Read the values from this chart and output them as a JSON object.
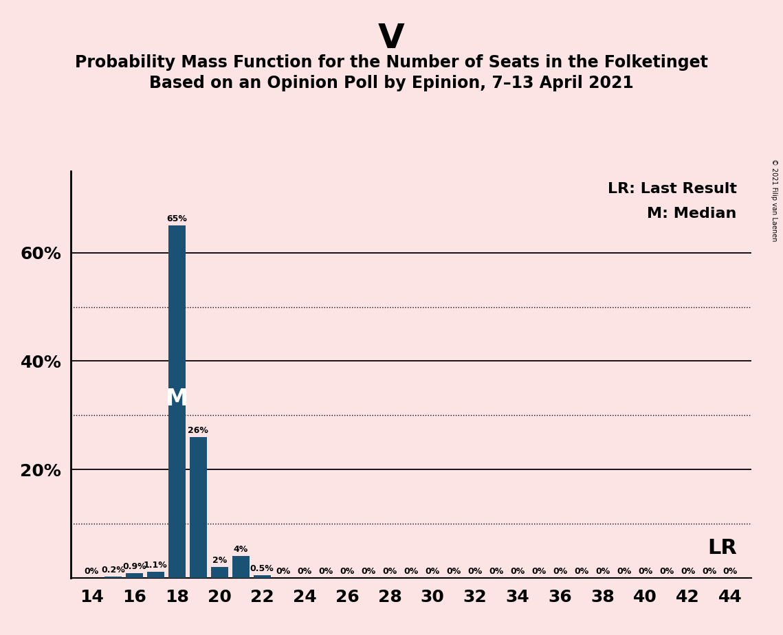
{
  "title": "V",
  "subtitle1": "Probability Mass Function for the Number of Seats in the Folketinget",
  "subtitle2": "Based on an Opinion Poll by Epinion, 7–13 April 2021",
  "copyright": "© 2021 Filip van Laenen",
  "background_color": "#fce4e4",
  "bar_color": "#1a5276",
  "seats": [
    14,
    15,
    16,
    17,
    18,
    19,
    20,
    21,
    22,
    23,
    24,
    25,
    26,
    27,
    28,
    29,
    30,
    31,
    32,
    33,
    34,
    35,
    36,
    37,
    38,
    39,
    40,
    41,
    42,
    43,
    44
  ],
  "probabilities": [
    0.0,
    0.2,
    0.9,
    1.1,
    65.0,
    26.0,
    2.0,
    4.0,
    0.5,
    0.0,
    0.0,
    0.0,
    0.0,
    0.0,
    0.0,
    0.0,
    0.0,
    0.0,
    0.0,
    0.0,
    0.0,
    0.0,
    0.0,
    0.0,
    0.0,
    0.0,
    0.0,
    0.0,
    0.0,
    0.0,
    0.0
  ],
  "bar_labels": [
    "0%",
    "0.2%",
    "0.9%",
    "1.1%",
    "65%",
    "26%",
    "2%",
    "4%",
    "0.5%",
    "0%",
    "0%",
    "0%",
    "0%",
    "0%",
    "0%",
    "0%",
    "0%",
    "0%",
    "0%",
    "0%",
    "0%",
    "0%",
    "0%",
    "0%",
    "0%",
    "0%",
    "0%",
    "0%",
    "0%",
    "0%",
    "0%"
  ],
  "median_seat": 18,
  "legend_lr": "LR: Last Result",
  "legend_m": "M: Median",
  "lr_label": "LR",
  "m_label": "M",
  "ylim": [
    0,
    75
  ],
  "solid_yticks": [
    20,
    40,
    60
  ],
  "dotted_yticks": [
    10,
    30,
    50
  ],
  "ytick_labels_positions": [
    20,
    40,
    60
  ],
  "ytick_labels_values": [
    "20%",
    "40%",
    "60%"
  ],
  "xmin": 13,
  "xmax": 45
}
